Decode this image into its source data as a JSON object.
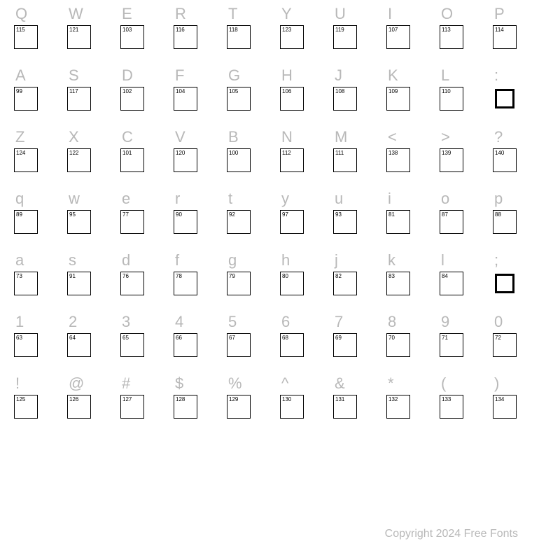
{
  "background_color": "#ffffff",
  "char_color": "#b8b8b8",
  "char_fontsize": 22,
  "code_fontsize": 8,
  "code_color": "#000000",
  "box_size": 34,
  "box_border": "#000000",
  "thick_box_border_width": 3,
  "columns": 10,
  "rows": [
    [
      {
        "char": "Q",
        "code": "115"
      },
      {
        "char": "W",
        "code": "121"
      },
      {
        "char": "E",
        "code": "103"
      },
      {
        "char": "R",
        "code": "116"
      },
      {
        "char": "T",
        "code": "118"
      },
      {
        "char": "Y",
        "code": "123"
      },
      {
        "char": "U",
        "code": "119"
      },
      {
        "char": "I",
        "code": "107"
      },
      {
        "char": "O",
        "code": "113"
      },
      {
        "char": "P",
        "code": "114"
      }
    ],
    [
      {
        "char": "A",
        "code": "99"
      },
      {
        "char": "S",
        "code": "117"
      },
      {
        "char": "D",
        "code": "102"
      },
      {
        "char": "F",
        "code": "104"
      },
      {
        "char": "G",
        "code": "105"
      },
      {
        "char": "H",
        "code": "106"
      },
      {
        "char": "J",
        "code": "108"
      },
      {
        "char": "K",
        "code": "109"
      },
      {
        "char": "L",
        "code": "110"
      },
      {
        "char": ":",
        "code": "",
        "thick": true
      }
    ],
    [
      {
        "char": "Z",
        "code": "124"
      },
      {
        "char": "X",
        "code": "122"
      },
      {
        "char": "C",
        "code": "101"
      },
      {
        "char": "V",
        "code": "120"
      },
      {
        "char": "B",
        "code": "100"
      },
      {
        "char": "N",
        "code": "112"
      },
      {
        "char": "M",
        "code": "111"
      },
      {
        "char": "<",
        "code": "138"
      },
      {
        "char": ">",
        "code": "139"
      },
      {
        "char": "?",
        "code": "140"
      }
    ],
    [
      {
        "char": "q",
        "code": "89"
      },
      {
        "char": "w",
        "code": "95"
      },
      {
        "char": "e",
        "code": "77"
      },
      {
        "char": "r",
        "code": "90"
      },
      {
        "char": "t",
        "code": "92"
      },
      {
        "char": "y",
        "code": "97"
      },
      {
        "char": "u",
        "code": "93"
      },
      {
        "char": "i",
        "code": "81"
      },
      {
        "char": "o",
        "code": "87"
      },
      {
        "char": "p",
        "code": "88"
      }
    ],
    [
      {
        "char": "a",
        "code": "73"
      },
      {
        "char": "s",
        "code": "91"
      },
      {
        "char": "d",
        "code": "76"
      },
      {
        "char": "f",
        "code": "78"
      },
      {
        "char": "g",
        "code": "79"
      },
      {
        "char": "h",
        "code": "80"
      },
      {
        "char": "j",
        "code": "82"
      },
      {
        "char": "k",
        "code": "83"
      },
      {
        "char": "l",
        "code": "84"
      },
      {
        "char": ";",
        "code": "",
        "thick": true
      }
    ],
    [
      {
        "char": "1",
        "code": "63"
      },
      {
        "char": "2",
        "code": "64"
      },
      {
        "char": "3",
        "code": "65"
      },
      {
        "char": "4",
        "code": "66"
      },
      {
        "char": "5",
        "code": "67"
      },
      {
        "char": "6",
        "code": "68"
      },
      {
        "char": "7",
        "code": "69"
      },
      {
        "char": "8",
        "code": "70"
      },
      {
        "char": "9",
        "code": "71"
      },
      {
        "char": "0",
        "code": "72"
      }
    ],
    [
      {
        "char": "!",
        "code": "125"
      },
      {
        "char": "@",
        "code": "126"
      },
      {
        "char": "#",
        "code": "127"
      },
      {
        "char": "$",
        "code": "128"
      },
      {
        "char": "%",
        "code": "129"
      },
      {
        "char": "^",
        "code": "130"
      },
      {
        "char": "&",
        "code": "131"
      },
      {
        "char": "*",
        "code": "132"
      },
      {
        "char": "(",
        "code": "133"
      },
      {
        "char": ")",
        "code": "134"
      }
    ]
  ],
  "footer": "Copyright 2024 Free Fonts"
}
